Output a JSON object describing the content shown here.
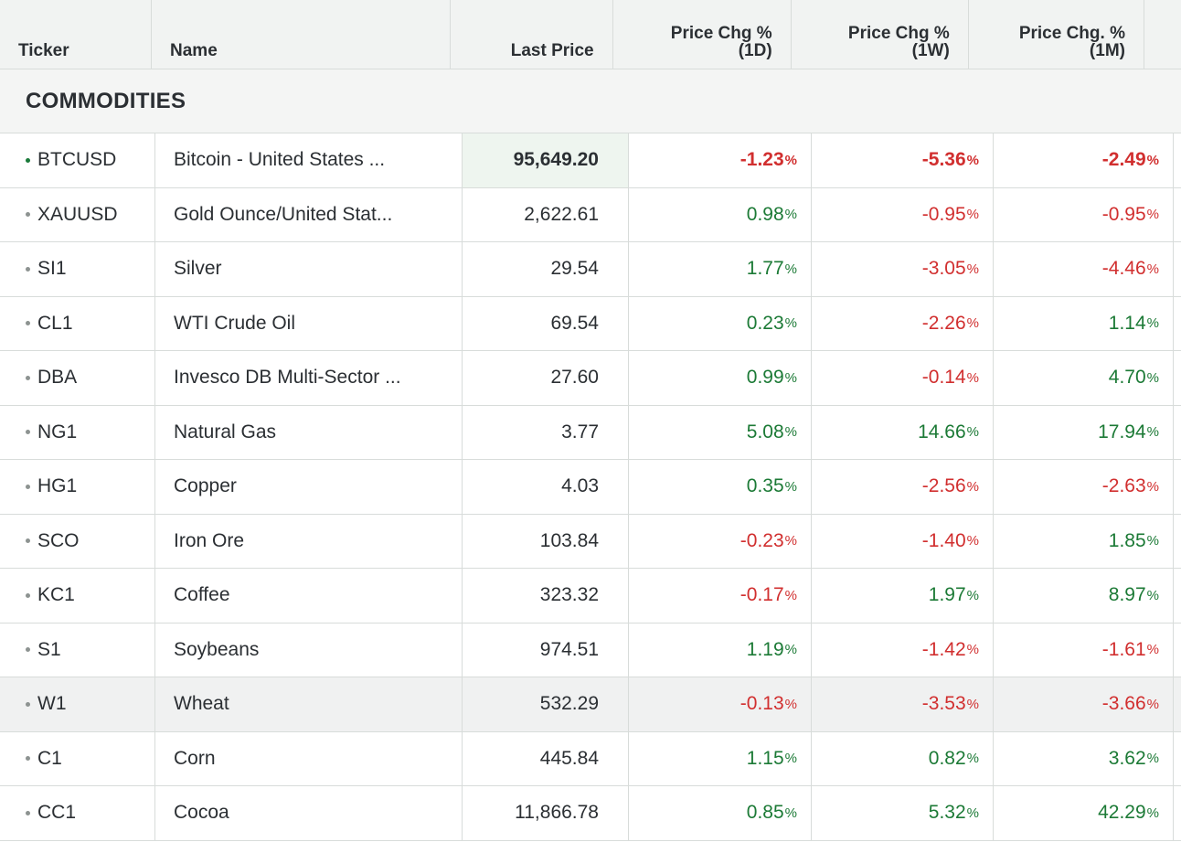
{
  "headers": {
    "ticker": "Ticker",
    "name": "Name",
    "last_price": "Last Price",
    "chg_1d_line1": "Price Chg %",
    "chg_1d_line2": "(1D)",
    "chg_1w_line1": "Price Chg %",
    "chg_1w_line2": "(1W)",
    "chg_1m_line1": "Price Chg. %",
    "chg_1m_line2": "(1M)"
  },
  "section_title": "COMMODITIES",
  "pct_symbol": "%",
  "colors": {
    "positive": "#1c7a36",
    "negative": "#d12f2f",
    "live_dot": "#1a7a3a"
  },
  "rows": [
    {
      "ticker": "BTCUSD",
      "name": "Bitcoin - United States ...",
      "price": "95,649.20",
      "d1": "-1.23",
      "w1": "-5.36",
      "m1": "-2.49"
    },
    {
      "ticker": "XAUUSD",
      "name": "Gold Ounce/United Stat...",
      "price": "2,622.61",
      "d1": "0.98",
      "w1": "-0.95",
      "m1": "-0.95"
    },
    {
      "ticker": "SI1",
      "name": "Silver",
      "price": "29.54",
      "d1": "1.77",
      "w1": "-3.05",
      "m1": "-4.46"
    },
    {
      "ticker": "CL1",
      "name": "WTI Crude Oil",
      "price": "69.54",
      "d1": "0.23",
      "w1": "-2.26",
      "m1": "1.14"
    },
    {
      "ticker": "DBA",
      "name": "Invesco DB Multi-Sector ...",
      "price": "27.60",
      "d1": "0.99",
      "w1": "-0.14",
      "m1": "4.70"
    },
    {
      "ticker": "NG1",
      "name": "Natural Gas",
      "price": "3.77",
      "d1": "5.08",
      "w1": "14.66",
      "m1": "17.94"
    },
    {
      "ticker": "HG1",
      "name": "Copper",
      "price": "4.03",
      "d1": "0.35",
      "w1": "-2.56",
      "m1": "-2.63"
    },
    {
      "ticker": "SCO",
      "name": "Iron Ore",
      "price": "103.84",
      "d1": "-0.23",
      "w1": "-1.40",
      "m1": "1.85"
    },
    {
      "ticker": "KC1",
      "name": "Coffee",
      "price": "323.32",
      "d1": "-0.17",
      "w1": "1.97",
      "m1": "8.97"
    },
    {
      "ticker": "S1",
      "name": "Soybeans",
      "price": "974.51",
      "d1": "1.19",
      "w1": "-1.42",
      "m1": "-1.61"
    },
    {
      "ticker": "W1",
      "name": "Wheat",
      "price": "532.29",
      "d1": "-0.13",
      "w1": "-3.53",
      "m1": "-3.66"
    },
    {
      "ticker": "C1",
      "name": "Corn",
      "price": "445.84",
      "d1": "1.15",
      "w1": "0.82",
      "m1": "3.62"
    },
    {
      "ticker": "CC1",
      "name": "Cocoa",
      "price": "11,866.78",
      "d1": "0.85",
      "w1": "5.32",
      "m1": "42.29"
    }
  ]
}
